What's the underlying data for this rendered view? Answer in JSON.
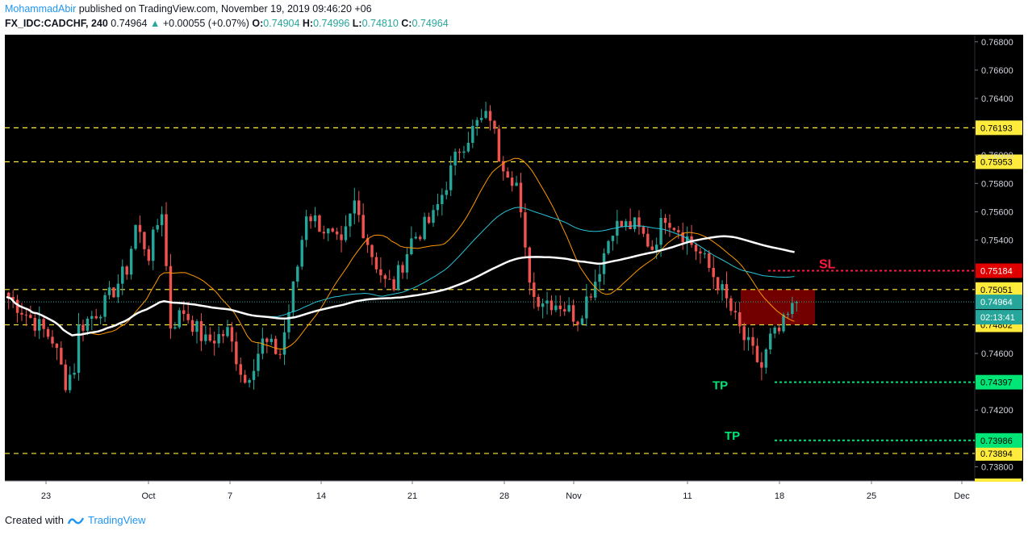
{
  "header": {
    "author": "MohammadAbir",
    "published": "published on TradingView.com, November 19, 2019 09:46:20 +06",
    "symbol": "FX_IDC:CADCHF, 240",
    "last": "0.74964",
    "change": "+0.00055 (+0.07%)",
    "o_label": "O:",
    "o": "0.74904",
    "h_label": "H:",
    "h": "0.74996",
    "l_label": "L:",
    "l": "0.74810",
    "c_label": "C:",
    "c": "0.74964"
  },
  "footer": {
    "created_with": "Created with",
    "brand": "TradingView"
  },
  "colors": {
    "background": "#000000",
    "up": "#26a69a",
    "down": "#ef5350",
    "ma_fast": "#ff9800",
    "ma_mid": "#26c6da",
    "ma_slow": "#ffffff",
    "level": "#ffeb3b",
    "sl": "#ff1744",
    "tp": "#00e676",
    "zone": "#7f0000"
  },
  "chart_data": {
    "type": "candlestick",
    "timeframe": "240",
    "ylim": [
      0.737,
      0.7685
    ],
    "y_ticks": [
      "0.76800",
      "0.76600",
      "0.76400",
      "0.76000",
      "0.75800",
      "0.75600",
      "0.75400",
      "0.74600",
      "0.74200",
      "0.73800"
    ],
    "x_ticks": [
      "23",
      "Oct",
      "7",
      "14",
      "21",
      "28",
      "Nov",
      "11",
      "18",
      "25",
      "Dec"
    ],
    "horizontal_levels": [
      {
        "value": 0.76193,
        "label": "0.76193",
        "style": "dashed",
        "color": "#ffeb3b"
      },
      {
        "value": 0.75953,
        "label": "0.75953",
        "style": "dashed",
        "color": "#ffeb3b"
      },
      {
        "value": 0.75051,
        "label": "0.75051",
        "style": "dashed",
        "color": "#ffeb3b"
      },
      {
        "value": 0.74802,
        "label": "0.74802",
        "style": "dashed",
        "color": "#ffeb3b"
      },
      {
        "value": 0.73894,
        "label": "0.73894",
        "style": "dashed",
        "color": "#ffeb3b"
      }
    ],
    "stop_loss": {
      "value": 0.75184,
      "label": "0.75184",
      "text": "SL"
    },
    "take_profits": [
      {
        "value": 0.74397,
        "label": "0.74397",
        "text": "TP"
      },
      {
        "value": 0.73986,
        "label": "0.73986",
        "text": "TP"
      }
    ],
    "current_price": {
      "value": 0.74964,
      "label": "0.74964",
      "countdown": "02:13:41"
    },
    "zone": {
      "from": 0.74802,
      "to": 0.75051
    },
    "price_path": [
      [
        0,
        0.75
      ],
      [
        6,
        0.7482
      ],
      [
        10,
        0.747
      ],
      [
        13,
        0.744
      ],
      [
        15,
        0.745
      ],
      [
        16,
        0.7478
      ],
      [
        22,
        0.7495
      ],
      [
        27,
        0.752
      ],
      [
        29,
        0.755
      ],
      [
        32,
        0.753
      ],
      [
        35,
        0.7562
      ],
      [
        37,
        0.748
      ],
      [
        40,
        0.749
      ],
      [
        45,
        0.7468
      ],
      [
        50,
        0.7475
      ],
      [
        54,
        0.744
      ],
      [
        58,
        0.7468
      ],
      [
        62,
        0.746
      ],
      [
        64,
        0.749
      ],
      [
        66,
        0.7522
      ],
      [
        68,
        0.756
      ],
      [
        72,
        0.7548
      ],
      [
        76,
        0.7534
      ],
      [
        79,
        0.7566
      ],
      [
        83,
        0.753
      ],
      [
        86,
        0.751
      ],
      [
        88,
        0.7508
      ],
      [
        92,
        0.754
      ],
      [
        97,
        0.7556
      ],
      [
        103,
        0.7605
      ],
      [
        107,
        0.7622
      ],
      [
        110,
        0.7628
      ],
      [
        112,
        0.76
      ],
      [
        116,
        0.758
      ],
      [
        118,
        0.753
      ],
      [
        120,
        0.75
      ],
      [
        126,
        0.7495
      ],
      [
        130,
        0.7485
      ],
      [
        134,
        0.7512
      ],
      [
        138,
        0.755
      ],
      [
        143,
        0.755
      ],
      [
        147,
        0.7535
      ],
      [
        150,
        0.7558
      ],
      [
        154,
        0.7545
      ],
      [
        158,
        0.753
      ],
      [
        162,
        0.751
      ],
      [
        165,
        0.749
      ],
      [
        168,
        0.747
      ],
      [
        172,
        0.745
      ],
      [
        174,
        0.747
      ],
      [
        176,
        0.7475
      ],
      [
        178,
        0.7486
      ],
      [
        180,
        0.7496
      ]
    ],
    "moving_averages": [
      {
        "color": "#ff9800",
        "period": 20
      },
      {
        "color": "#26c6da",
        "period": 50
      },
      {
        "color": "#ffffff",
        "period": 100
      }
    ]
  }
}
